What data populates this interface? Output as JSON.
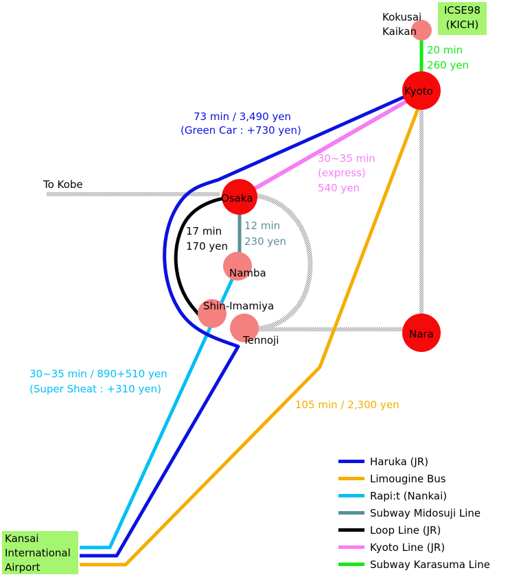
{
  "colors": {
    "haruka": "#0a12e0",
    "bus": "#f5ad00",
    "rapit": "#00bff5",
    "midosuji": "#5a8f96",
    "loop": "#000000",
    "kyoto_line": "#f57ef5",
    "karasuma": "#12eb12",
    "station_major": "#f50a0a",
    "station_minor": "#f58080",
    "box_bg": "#a6f571",
    "dotted": "#c0c0c0"
  },
  "stations": {
    "kyoto": "Kyoto",
    "osaka": "Osaka",
    "namba": "Namba",
    "shin_imamiya": "Shin-Imamiya",
    "tennoji": "Tennoji",
    "nara": "Nara",
    "kokusai_line1": "Kokusai",
    "kokusai_line2": "Kaikan"
  },
  "boxes": {
    "icse_line1": "ICSE98",
    "icse_line2": "(KICH)",
    "kix_line1": "Kansai",
    "kix_line2": "International",
    "kix_line3": "Airport"
  },
  "labels": {
    "to_kobe": "To Kobe",
    "karasuma_time": "20 min",
    "karasuma_fare": "260 yen",
    "haruka_line1": "73 min / 3,490 yen",
    "haruka_line2": "(Green Car : +730 yen)",
    "kyoto_line1": "30~35 min",
    "kyoto_line2": "(express)",
    "kyoto_line3": "540 yen",
    "loop_time": "17 min",
    "loop_fare": "170 yen",
    "midosuji_time": "12 min",
    "midosuji_fare": "230 yen",
    "rapit_line1": "30~35 min / 890+510 yen",
    "rapit_line2": "(Super Sheat : +310 yen)",
    "bus_line1": "105 min / 2,300 yen"
  },
  "legend": [
    {
      "label": "Haruka (JR)",
      "color": "#0a12e0"
    },
    {
      "label": "Limougine Bus",
      "color": "#f5ad00"
    },
    {
      "label": "Rapi:t (Nankai)",
      "color": "#00bff5"
    },
    {
      "label": "Subway Midosuji Line",
      "color": "#5a8f96"
    },
    {
      "label": "Loop Line (JR)",
      "color": "#000000"
    },
    {
      "label": "Kyoto Line (JR)",
      "color": "#f57ef5"
    },
    {
      "label": "Subway Karasuma Line",
      "color": "#12eb12"
    }
  ]
}
